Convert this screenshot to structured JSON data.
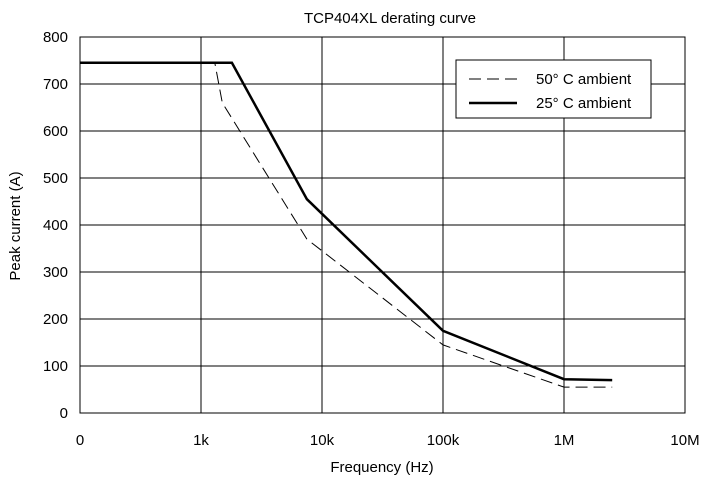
{
  "chart_data": {
    "type": "line",
    "title": "TCP404XL derating curve",
    "xlabel": "Frequency  (Hz)",
    "ylabel": "Peak current (A)",
    "x_scale": "log",
    "x_ticks": [
      {
        "value": 0,
        "label": "0"
      },
      {
        "value": 1000,
        "label": "1k"
      },
      {
        "value": 10000,
        "label": "10k"
      },
      {
        "value": 100000,
        "label": "100k"
      },
      {
        "value": 1000000,
        "label": "1M"
      },
      {
        "value": 10000000,
        "label": "10M"
      }
    ],
    "y_ticks": [
      "0",
      "100",
      "200",
      "300",
      "400",
      "500",
      "600",
      "700",
      "800"
    ],
    "ylim": [
      0,
      800
    ],
    "grid": true,
    "legend_position": "top-right",
    "series": [
      {
        "name": "50° C ambient",
        "style": "dashed",
        "color": "#000000",
        "points": [
          [
            0,
            745
          ],
          [
            1300,
            745
          ],
          [
            1500,
            660
          ],
          [
            7500,
            370
          ],
          [
            100000,
            145
          ],
          [
            1000000,
            55
          ],
          [
            2500000,
            55
          ]
        ]
      },
      {
        "name": "25° C ambient",
        "style": "solid",
        "color": "#000000",
        "points": [
          [
            0,
            745
          ],
          [
            1800,
            745
          ],
          [
            7500,
            455
          ],
          [
            100000,
            175
          ],
          [
            1000000,
            72
          ],
          [
            2500000,
            70
          ]
        ]
      }
    ]
  }
}
